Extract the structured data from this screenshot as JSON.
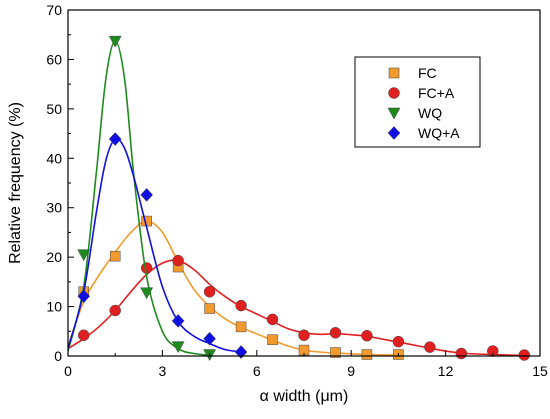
{
  "chart_data": {
    "type": "scatter",
    "title": "",
    "xlabel": "α width (μm)",
    "ylabel": "Relative frequency (%)",
    "xlim": [
      0,
      15
    ],
    "ylim": [
      0,
      70
    ],
    "xticks": [
      "0",
      "3",
      "6",
      "9",
      "12",
      "15"
    ],
    "yticks": [
      "0",
      "10",
      "20",
      "30",
      "40",
      "50",
      "60",
      "70"
    ],
    "grid": false,
    "legend_placement": "top-right",
    "series": [
      {
        "name": "FC",
        "marker": "square",
        "color": "#f39a2e",
        "points": [
          [
            0.5,
            13.0
          ],
          [
            1.5,
            20.2
          ],
          [
            2.5,
            27.3
          ],
          [
            3.5,
            18.0
          ],
          [
            4.5,
            9.6
          ],
          [
            5.5,
            5.9
          ],
          [
            6.5,
            3.3
          ],
          [
            7.5,
            1.2
          ],
          [
            8.5,
            0.7
          ],
          [
            9.5,
            0.3
          ],
          [
            10.5,
            0.3
          ]
        ],
        "curve": [
          [
            0,
            2.0
          ],
          [
            0.5,
            11.0
          ],
          [
            1.0,
            16.5
          ],
          [
            1.5,
            21.0
          ],
          [
            2.0,
            25.0
          ],
          [
            2.5,
            27.3
          ],
          [
            3.0,
            25.0
          ],
          [
            3.5,
            19.0
          ],
          [
            4.0,
            13.5
          ],
          [
            4.5,
            10.0
          ],
          [
            5.0,
            7.5
          ],
          [
            5.5,
            5.8
          ],
          [
            6.0,
            4.5
          ],
          [
            6.5,
            3.2
          ],
          [
            7.0,
            2.0
          ],
          [
            7.5,
            1.2
          ],
          [
            8.0,
            0.8
          ],
          [
            8.5,
            0.6
          ],
          [
            9.5,
            0.3
          ],
          [
            10.5,
            0.2
          ]
        ]
      },
      {
        "name": "FC+A",
        "marker": "circle",
        "color": "#e02020",
        "points": [
          [
            0.5,
            4.2
          ],
          [
            1.5,
            9.2
          ],
          [
            2.5,
            17.8
          ],
          [
            3.5,
            19.3
          ],
          [
            4.5,
            13.0
          ],
          [
            5.5,
            10.2
          ],
          [
            6.5,
            7.4
          ],
          [
            7.5,
            4.2
          ],
          [
            8.5,
            4.7
          ],
          [
            9.5,
            4.1
          ],
          [
            10.5,
            2.9
          ],
          [
            11.5,
            1.8
          ],
          [
            12.5,
            0.5
          ],
          [
            13.5,
            1.0
          ],
          [
            14.5,
            0.2
          ]
        ],
        "curve": [
          [
            0,
            1.5
          ],
          [
            0.5,
            3.5
          ],
          [
            1.0,
            6.0
          ],
          [
            1.5,
            9.2
          ],
          [
            2.0,
            13.0
          ],
          [
            2.5,
            16.5
          ],
          [
            3.0,
            18.8
          ],
          [
            3.5,
            19.3
          ],
          [
            4.0,
            17.5
          ],
          [
            4.5,
            14.5
          ],
          [
            5.0,
            12.0
          ],
          [
            5.5,
            10.0
          ],
          [
            6.0,
            8.5
          ],
          [
            6.5,
            7.0
          ],
          [
            7.0,
            5.5
          ],
          [
            7.5,
            4.7
          ],
          [
            8.0,
            4.4
          ],
          [
            8.5,
            4.5
          ],
          [
            9.0,
            4.3
          ],
          [
            9.5,
            4.0
          ],
          [
            10.0,
            3.4
          ],
          [
            10.5,
            2.8
          ],
          [
            11.0,
            2.2
          ],
          [
            11.5,
            1.6
          ],
          [
            12.0,
            1.0
          ],
          [
            12.5,
            0.6
          ],
          [
            13.0,
            0.4
          ],
          [
            13.5,
            0.3
          ],
          [
            14.0,
            0.2
          ],
          [
            14.5,
            0.1
          ]
        ]
      },
      {
        "name": "WQ",
        "marker": "triangle-down",
        "color": "#1e8a1e",
        "points": [
          [
            0.5,
            20.5
          ],
          [
            1.5,
            63.7
          ],
          [
            2.5,
            12.8
          ],
          [
            3.5,
            1.9
          ],
          [
            4.5,
            0.3
          ]
        ],
        "curve": [
          [
            0,
            1.0
          ],
          [
            0.5,
            14.0
          ],
          [
            0.9,
            37.0
          ],
          [
            1.2,
            56.0
          ],
          [
            1.5,
            63.7
          ],
          [
            1.8,
            56.0
          ],
          [
            2.1,
            36.0
          ],
          [
            2.5,
            16.0
          ],
          [
            3.0,
            5.0
          ],
          [
            3.5,
            1.5
          ],
          [
            4.0,
            0.5
          ],
          [
            4.5,
            0.2
          ]
        ]
      },
      {
        "name": "WQ+A",
        "marker": "diamond",
        "color": "#1010e0",
        "points": [
          [
            0.5,
            12.1
          ],
          [
            1.5,
            43.9
          ],
          [
            2.5,
            32.6
          ],
          [
            3.5,
            7.1
          ],
          [
            4.5,
            3.5
          ],
          [
            5.5,
            0.8
          ]
        ],
        "curve": [
          [
            0,
            1.5
          ],
          [
            0.5,
            13.0
          ],
          [
            0.9,
            29.0
          ],
          [
            1.2,
            39.5
          ],
          [
            1.5,
            43.9
          ],
          [
            1.8,
            42.0
          ],
          [
            2.1,
            36.0
          ],
          [
            2.5,
            26.0
          ],
          [
            3.0,
            14.0
          ],
          [
            3.5,
            7.0
          ],
          [
            4.0,
            4.0
          ],
          [
            4.5,
            2.5
          ],
          [
            5.0,
            1.3
          ],
          [
            5.5,
            0.8
          ]
        ]
      }
    ]
  }
}
